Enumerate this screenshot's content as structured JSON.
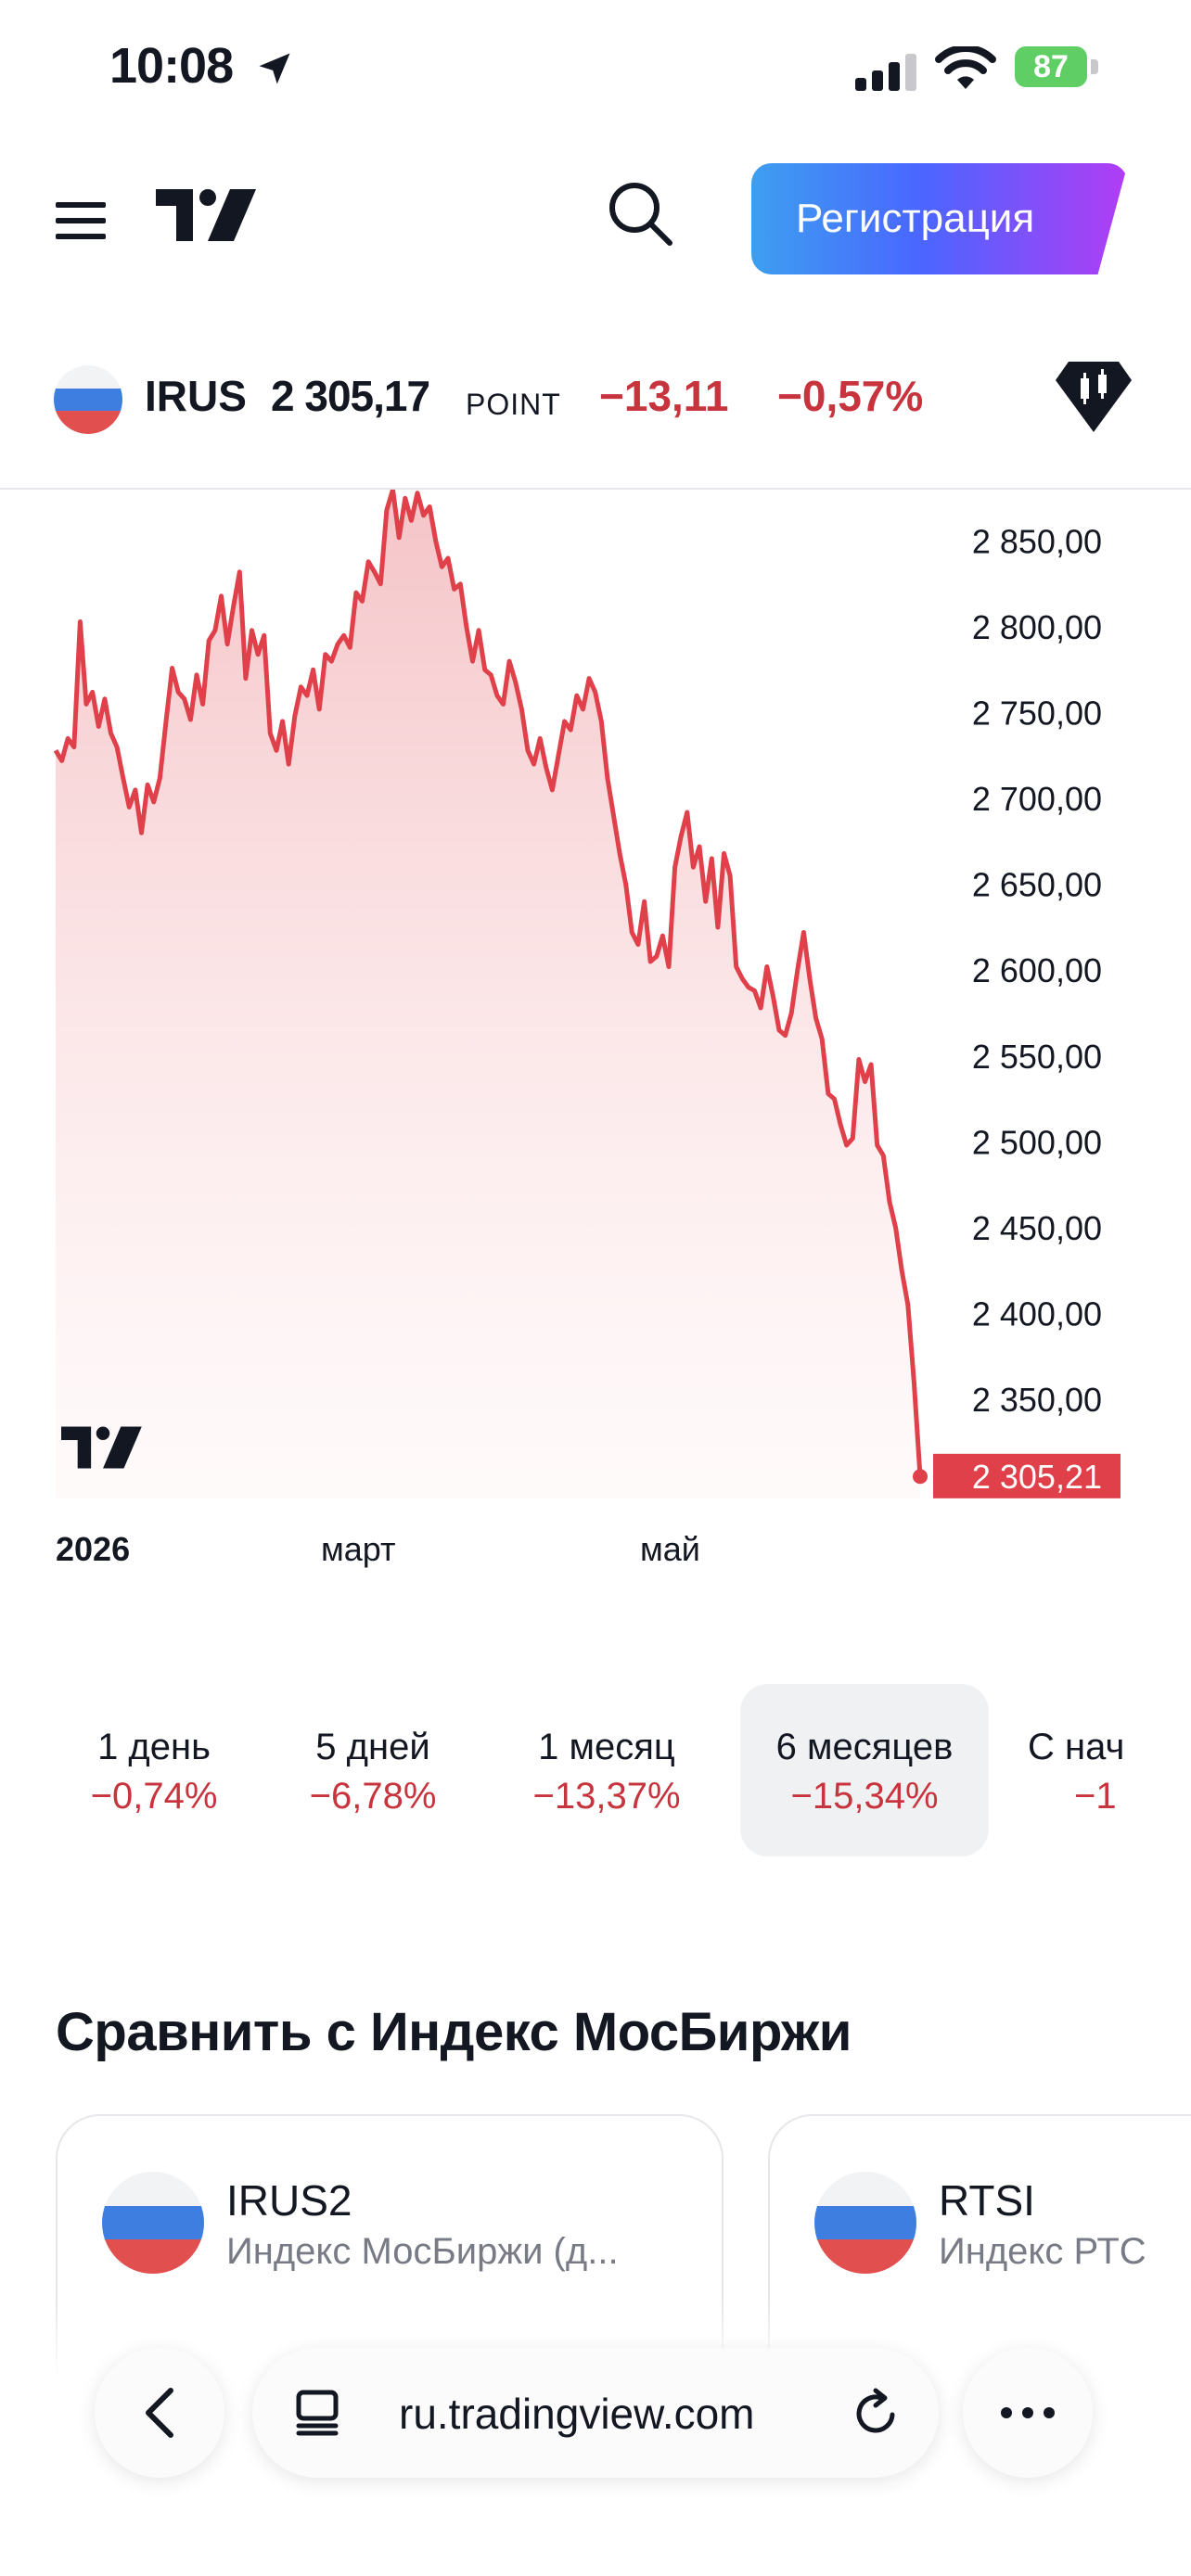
{
  "status_bar": {
    "time": "10:08",
    "battery": "87"
  },
  "header": {
    "register_label": "Регистрация"
  },
  "symbol": {
    "name": "IRUS",
    "price": "2 305,17",
    "unit": "POINT",
    "change": "−13,11",
    "change_pct": "−0,57%"
  },
  "chart_data": {
    "type": "area",
    "title": "",
    "ylim": [
      2290,
      2880
    ],
    "y_ticks": [
      "2 850,00",
      "2 800,00",
      "2 750,00",
      "2 700,00",
      "2 650,00",
      "2 600,00",
      "2 550,00",
      "2 500,00",
      "2 450,00",
      "2 400,00",
      "2 350,00"
    ],
    "x_ticks": [
      "2026",
      "март",
      "май"
    ],
    "last_price_label": "2 305,21",
    "last_price": 2305.21,
    "line_color": "#e0404a",
    "series": [
      {
        "values": [
          2728,
          2722,
          2735,
          2730,
          2803,
          2755,
          2762,
          2742,
          2758,
          2738,
          2730,
          2712,
          2695,
          2705,
          2680,
          2708,
          2698,
          2712,
          2745,
          2776,
          2762,
          2758,
          2746,
          2772,
          2755,
          2792,
          2798,
          2818,
          2790,
          2812,
          2832,
          2770,
          2798,
          2784,
          2795,
          2738,
          2728,
          2745,
          2720,
          2748,
          2765,
          2760,
          2775,
          2752,
          2784,
          2780,
          2790,
          2795,
          2788,
          2820,
          2815,
          2838,
          2832,
          2825,
          2868,
          2880,
          2852,
          2875,
          2862,
          2878,
          2865,
          2870,
          2850,
          2835,
          2840,
          2822,
          2825,
          2800,
          2780,
          2798,
          2775,
          2772,
          2760,
          2755,
          2780,
          2768,
          2752,
          2728,
          2720,
          2735,
          2718,
          2705,
          2725,
          2745,
          2740,
          2760,
          2752,
          2770,
          2762,
          2745,
          2712,
          2690,
          2668,
          2650,
          2622,
          2615,
          2640,
          2605,
          2608,
          2620,
          2602,
          2660,
          2678,
          2692,
          2660,
          2672,
          2640,
          2665,
          2625,
          2668,
          2655,
          2602,
          2595,
          2590,
          2588,
          2578,
          2602,
          2585,
          2565,
          2562,
          2575,
          2600,
          2622,
          2595,
          2572,
          2560,
          2528,
          2525,
          2510,
          2498,
          2502,
          2548,
          2535,
          2545,
          2498,
          2492,
          2465,
          2450,
          2425,
          2405,
          2360,
          2305
        ],
        "aria": "IRUS 6 months"
      }
    ]
  },
  "periods": [
    {
      "label": "1 день",
      "value": "−0,74%"
    },
    {
      "label": "5 дней",
      "value": "−6,78%"
    },
    {
      "label": "1 месяц",
      "value": "−13,37%"
    },
    {
      "label": "6 месяцев",
      "value": "−15,34%"
    },
    {
      "label": "С нач",
      "value": "−1"
    }
  ],
  "compare": {
    "title": "Сравнить с Индекс МосБиржи",
    "cards": [
      {
        "title": "IRUS2",
        "subtitle": "Индекс МосБиржи (д..."
      },
      {
        "title": "RTSI",
        "subtitle": "Индекс РТС"
      }
    ]
  },
  "browser": {
    "url": "ru.tradingview.com"
  },
  "colors": {
    "accent_red": "#c8343e",
    "flag_white": "#f2f3f5",
    "flag_blue": "#3d7ee0",
    "flag_red": "#e1504f"
  },
  "icons": [
    "location-arrow-icon",
    "signal-icon",
    "wifi-icon",
    "hamburger-icon",
    "tradingview-logo",
    "search-icon",
    "diamond-icon",
    "back-icon",
    "tabs-icon",
    "reload-icon",
    "more-icon"
  ]
}
